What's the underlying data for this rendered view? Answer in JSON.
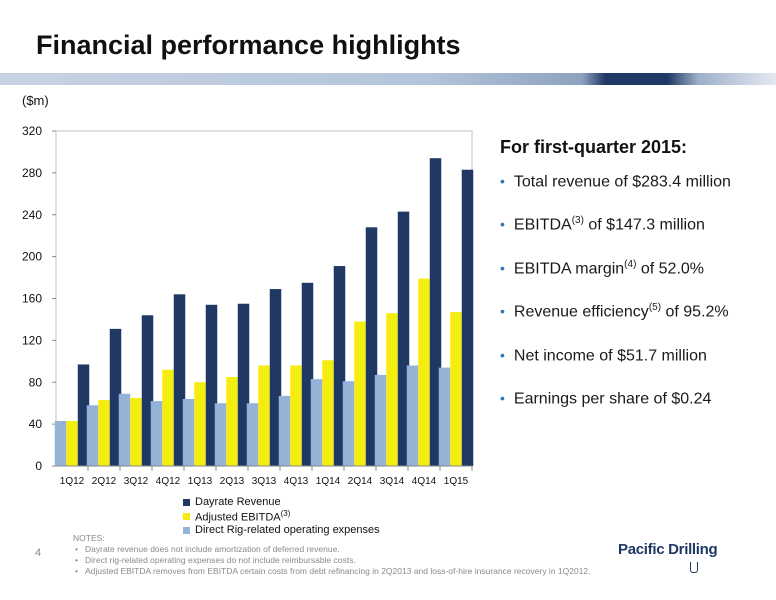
{
  "slide": {
    "title": "Financial performance highlights",
    "unit_label": "($m)",
    "page_number": "4"
  },
  "panel": {
    "heading": "For first-quarter 2015:",
    "bullets": [
      {
        "pre": "Total revenue of $283.4 million",
        "sup": "",
        "post": ""
      },
      {
        "pre": "EBITDA",
        "sup": "(3)",
        "post": " of $147.3 million"
      },
      {
        "pre": "EBITDA margin",
        "sup": "(4)",
        "post": " of 52.0%"
      },
      {
        "pre": "Revenue efficiency",
        "sup": "(5)",
        "post": " of 95.2%"
      },
      {
        "pre": "Net income of $51.7 million",
        "sup": "",
        "post": ""
      },
      {
        "pre": "Earnings per share of $0.24",
        "sup": "",
        "post": ""
      }
    ]
  },
  "notes": {
    "heading": "NOTES:",
    "items": [
      "Dayrate revenue does not include amortization of deferred revenue.",
      "Direct rig-related operating expenses do not include reimbursable costs.",
      "Adjusted EBITDA removes from EBITDA certain costs from debt refinancing in 2Q2013 and loss-of-hire insurance recovery in 1Q2012."
    ]
  },
  "logo": {
    "text": "Pacific Drilling"
  },
  "colors": {
    "dayrate": "#1f3864",
    "ebitda": "#f5ed0f",
    "opex": "#95b3d7",
    "bullet": "#2e75b6"
  },
  "chart_data": {
    "type": "bar",
    "categories": [
      "1Q12",
      "2Q12",
      "3Q12",
      "4Q12",
      "1Q13",
      "2Q13",
      "3Q13",
      "4Q13",
      "1Q14",
      "2Q14",
      "3Q14",
      "4Q14",
      "1Q15"
    ],
    "series": [
      {
        "name": "Direct Rig-related operating expenses",
        "values": [
          43,
          58,
          69,
          62,
          64,
          60,
          60,
          67,
          83,
          81,
          87,
          96,
          94
        ]
      },
      {
        "name": "Adjusted EBITDA",
        "sup": "(3)",
        "values": [
          43,
          63,
          65,
          92,
          80,
          85,
          96,
          96,
          101,
          138,
          146,
          179,
          147
        ]
      },
      {
        "name": "Dayrate Revenue",
        "values": [
          97,
          131,
          144,
          164,
          154,
          155,
          169,
          175,
          191,
          228,
          243,
          294,
          283
        ]
      }
    ],
    "legend_order": [
      "Dayrate Revenue",
      "Adjusted EBITDA",
      "Direct Rig-related operating expenses"
    ],
    "yticks": [
      0,
      40,
      80,
      120,
      160,
      200,
      240,
      280,
      320
    ],
    "ylim": [
      0,
      320
    ],
    "grid": false,
    "legend_position": "bottom"
  }
}
